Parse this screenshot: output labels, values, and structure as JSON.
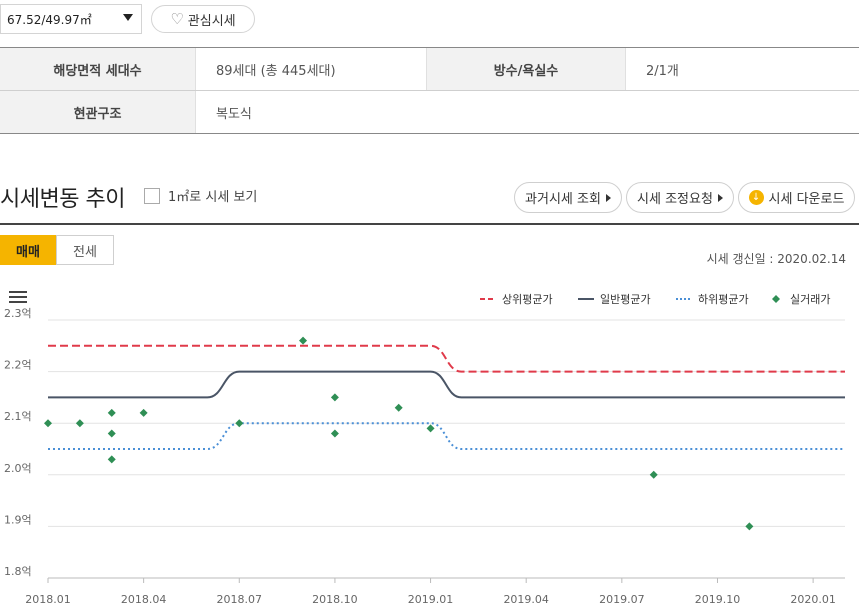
{
  "top": {
    "area_value": "67.52/49.97㎡",
    "fav_label": "관심시세"
  },
  "info": {
    "row1": {
      "h1": "해당면적 세대수",
      "v1": "89세대 (총 445세대)",
      "h2": "방수/욕실수",
      "v2": "2/1개"
    },
    "row2": {
      "h1": "현관구조",
      "v1": "복도식"
    }
  },
  "section": {
    "title": "시세변동 추이",
    "checkbox_label": "1㎡로 시세 보기",
    "btn_past": "과거시세 조회",
    "btn_adjust": "시세 조정요청",
    "btn_download": "시세 다운로드"
  },
  "tabs": {
    "active": "매매",
    "inactive": "전세"
  },
  "update_info": "시세 갱신일 : 2020.02.14",
  "icons": {
    "menu": "hamburger-menu-icon",
    "heart": "heart-icon",
    "download": "download-icon"
  },
  "colors": {
    "upper": "#e03a4a",
    "avg": "#4a5566",
    "lower": "#4a8fd6",
    "trade": "#2f8f55",
    "accent": "#f5b400"
  },
  "chart_data": {
    "type": "line",
    "ylim": [
      1.8,
      2.3
    ],
    "yticks": [
      1.8,
      1.9,
      2.0,
      2.1,
      2.2,
      2.3
    ],
    "ytick_labels": [
      "1.8억",
      "1.9억",
      "2.0억",
      "2.1억",
      "2.2억",
      "2.3억"
    ],
    "x_range": [
      "2018-01",
      "2020-02"
    ],
    "xtick_labels": [
      "2018.01",
      "2018.04",
      "2018.07",
      "2018.10",
      "2019.01",
      "2019.04",
      "2019.07",
      "2019.10",
      "2020.01"
    ],
    "xtick_values": [
      "2018-01",
      "2018-04",
      "2018-07",
      "2018-10",
      "2019-01",
      "2019-04",
      "2019-07",
      "2019-10",
      "2020-01"
    ],
    "legend_position": "top-right",
    "series": [
      {
        "name": "상위평균가",
        "style": "dashed",
        "color": "#e03a4a",
        "points": [
          [
            "2018-01",
            2.25
          ],
          [
            "2019-01",
            2.25
          ],
          [
            "2019-01-30",
            2.2
          ],
          [
            "2020-02",
            2.2
          ]
        ]
      },
      {
        "name": "일반평균가",
        "style": "solid",
        "color": "#4a5566",
        "points": [
          [
            "2018-01",
            2.15
          ],
          [
            "2018-06-01",
            2.15
          ],
          [
            "2018-07",
            2.2
          ],
          [
            "2019-01",
            2.2
          ],
          [
            "2019-01-30",
            2.15
          ],
          [
            "2020-02",
            2.15
          ]
        ]
      },
      {
        "name": "하위평균가",
        "style": "dotted",
        "color": "#4a8fd6",
        "points": [
          [
            "2018-01",
            2.05
          ],
          [
            "2018-06-01",
            2.05
          ],
          [
            "2018-07",
            2.1
          ],
          [
            "2019-01",
            2.1
          ],
          [
            "2019-01-30",
            2.05
          ],
          [
            "2020-02",
            2.05
          ]
        ]
      }
    ],
    "trades": {
      "name": "실거래가",
      "color": "#2f8f55",
      "points": [
        [
          "2018-01",
          2.1
        ],
        [
          "2018-02",
          2.1
        ],
        [
          "2018-03",
          2.12
        ],
        [
          "2018-03",
          2.08
        ],
        [
          "2018-03",
          2.03
        ],
        [
          "2018-04",
          2.12
        ],
        [
          "2018-07",
          2.1
        ],
        [
          "2018-09",
          2.26
        ],
        [
          "2018-10",
          2.15
        ],
        [
          "2018-10",
          2.08
        ],
        [
          "2018-12",
          2.13
        ],
        [
          "2019-01",
          2.09
        ],
        [
          "2019-08",
          2.0
        ],
        [
          "2019-11",
          1.9
        ]
      ]
    }
  }
}
